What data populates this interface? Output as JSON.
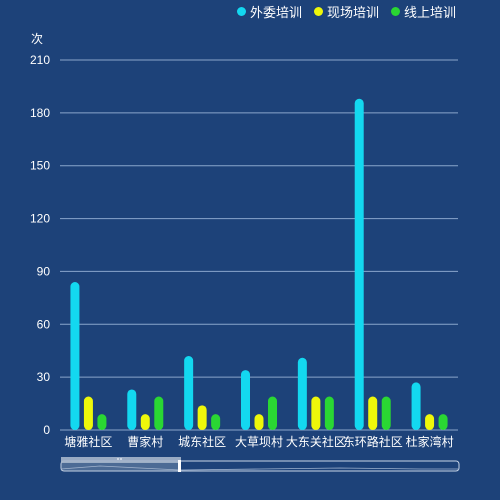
{
  "chart_data": {
    "type": "bar",
    "ylabel": "次",
    "ylim": [
      0,
      210
    ],
    "yticks": [
      0,
      30,
      60,
      90,
      120,
      150,
      180,
      210
    ],
    "grid": true,
    "legend_position": "top-right",
    "categories": [
      "塘雅社区",
      "曹家村",
      "城东社区",
      "大草坝村",
      "大东关社区",
      "东环路社区",
      "杜家湾村"
    ],
    "series": [
      {
        "name": "外委培训",
        "color": "#13d8f0",
        "values": [
          84,
          23,
          42,
          34,
          41,
          188,
          27
        ]
      },
      {
        "name": "现场培训",
        "color": "#eef70a",
        "values": [
          19,
          9,
          14,
          9,
          19,
          19,
          9
        ]
      },
      {
        "name": "线上培训",
        "color": "#2ad733",
        "values": [
          9,
          19,
          9,
          19,
          19,
          19,
          9
        ]
      }
    ]
  },
  "colors": {
    "background": "#1d4279",
    "grid": "#8aa6cc",
    "text": "#ffffff",
    "zoom_handle": "#a7b7cc"
  }
}
